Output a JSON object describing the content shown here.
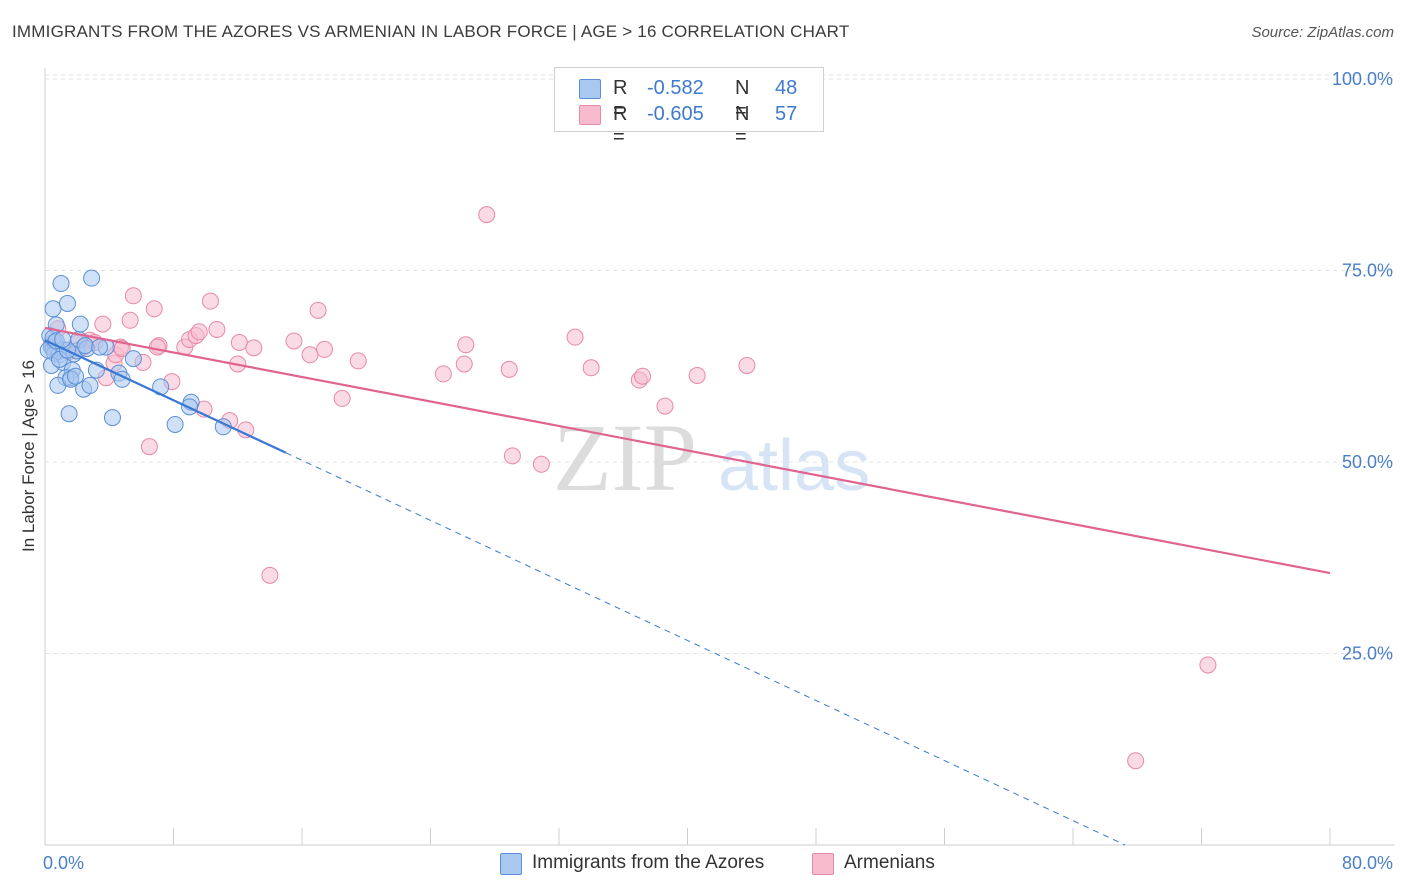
{
  "title": "IMMIGRANTS FROM THE AZORES VS ARMENIAN IN LABOR FORCE | AGE > 16 CORRELATION CHART",
  "source": "Source: ZipAtlas.com",
  "legend": {
    "rows": [
      {
        "r_label": "R =",
        "r_value": "-0.582",
        "n_label": "N =",
        "n_value": "48"
      },
      {
        "r_label": "R =",
        "r_value": "-0.605",
        "n_label": "N =",
        "n_value": "57"
      }
    ]
  },
  "bottom_legend": {
    "series1": "Immigrants from the Azores",
    "series2": "Armenians"
  },
  "colors": {
    "blue_fill": "#a9c8f0",
    "blue_stroke": "#5b8fd6",
    "blue_line": "#3a78d2",
    "pink_fill": "#f6bccd",
    "pink_stroke": "#e889a8",
    "pink_line": "#e0648f",
    "tick_text": "#4a7fc8"
  },
  "chart_data": {
    "type": "scatter",
    "title": "IMMIGRANTS FROM THE AZORES VS ARMENIAN IN LABOR FORCE | AGE > 16 CORRELATION CHART",
    "xlabel": "",
    "ylabel": "In Labor Force | Age > 16",
    "xlim": [
      0,
      80
    ],
    "ylim": [
      0,
      105
    ],
    "x_tick_labels": [
      "0.0%",
      "80.0%"
    ],
    "y_ticks": [
      25,
      50,
      75,
      100
    ],
    "y_tick_labels": [
      "25.0%",
      "50.0%",
      "75.0%",
      "100.0%"
    ],
    "grid": true,
    "watermark": {
      "part1": "ZIP",
      "part2": "atlas"
    },
    "series": [
      {
        "name": "Immigrants from the Azores",
        "color": "blue",
        "points": [
          [
            0.3,
            66.5
          ],
          [
            0.4,
            65.0
          ],
          [
            0.5,
            64.8
          ],
          [
            0.6,
            65.6
          ],
          [
            0.7,
            67.9
          ],
          [
            0.5,
            70.0
          ],
          [
            0.8,
            64.5
          ],
          [
            0.9,
            64.0
          ],
          [
            1.0,
            73.3
          ],
          [
            1.1,
            63.0
          ],
          [
            1.2,
            64.6
          ],
          [
            1.4,
            70.7
          ],
          [
            1.5,
            56.3
          ],
          [
            1.6,
            61.0
          ],
          [
            1.7,
            62.0
          ],
          [
            1.8,
            64.1
          ],
          [
            2.0,
            64.5
          ],
          [
            2.1,
            66.0
          ],
          [
            2.2,
            68.0
          ],
          [
            2.4,
            59.5
          ],
          [
            2.6,
            64.8
          ],
          [
            2.8,
            60.0
          ],
          [
            2.9,
            74.0
          ],
          [
            3.2,
            62.0
          ],
          [
            3.8,
            65.0
          ],
          [
            4.2,
            55.8
          ],
          [
            4.6,
            61.6
          ],
          [
            4.8,
            60.8
          ],
          [
            5.5,
            63.5
          ],
          [
            7.2,
            59.8
          ],
          [
            8.1,
            54.9
          ],
          [
            9.1,
            57.8
          ],
          [
            11.1,
            54.6
          ],
          [
            9.0,
            57.2
          ],
          [
            1.3,
            61.0
          ],
          [
            0.8,
            60.0
          ],
          [
            1.6,
            60.8
          ],
          [
            0.6,
            64.2
          ],
          [
            1.9,
            61.2
          ],
          [
            0.4,
            62.6
          ],
          [
            0.2,
            64.6
          ],
          [
            0.5,
            66.2
          ],
          [
            0.9,
            63.4
          ],
          [
            2.5,
            65.2
          ],
          [
            1.4,
            64.6
          ],
          [
            0.7,
            65.8
          ],
          [
            1.1,
            66.0
          ],
          [
            3.4,
            65.0
          ]
        ],
        "trend_solid": {
          "x": [
            0,
            15
          ],
          "y": [
            65.9,
            51.2
          ]
        },
        "trend_dashed": {
          "x": [
            15,
            80
          ],
          "y": [
            51.2,
            -12.5
          ]
        }
      },
      {
        "name": "Armenians",
        "color": "pink",
        "points": [
          [
            0.4,
            65.5
          ],
          [
            0.8,
            67.4
          ],
          [
            1.0,
            64.7
          ],
          [
            1.5,
            64.4
          ],
          [
            2.0,
            65.5
          ],
          [
            2.4,
            65.0
          ],
          [
            2.8,
            65.9
          ],
          [
            3.1,
            65.6
          ],
          [
            3.6,
            68.0
          ],
          [
            3.8,
            61.0
          ],
          [
            4.3,
            62.9
          ],
          [
            4.4,
            64.0
          ],
          [
            4.7,
            65.0
          ],
          [
            5.3,
            68.5
          ],
          [
            5.5,
            71.7
          ],
          [
            6.1,
            63.0
          ],
          [
            6.5,
            52.0
          ],
          [
            6.8,
            70.0
          ],
          [
            7.1,
            65.2
          ],
          [
            7.9,
            60.5
          ],
          [
            8.7,
            65.0
          ],
          [
            9.0,
            66.0
          ],
          [
            9.4,
            66.5
          ],
          [
            9.6,
            67.0
          ],
          [
            9.9,
            56.9
          ],
          [
            10.3,
            71.0
          ],
          [
            10.7,
            67.3
          ],
          [
            11.5,
            55.4
          ],
          [
            12.0,
            62.8
          ],
          [
            12.5,
            54.2
          ],
          [
            12.1,
            65.6
          ],
          [
            13.0,
            64.9
          ],
          [
            14.0,
            35.2
          ],
          [
            15.5,
            65.8
          ],
          [
            16.5,
            64.0
          ],
          [
            17.0,
            69.8
          ],
          [
            17.4,
            64.7
          ],
          [
            18.5,
            58.3
          ],
          [
            19.5,
            63.2
          ],
          [
            24.8,
            61.5
          ],
          [
            26.2,
            65.3
          ],
          [
            26.1,
            62.8
          ],
          [
            27.5,
            82.3
          ],
          [
            28.9,
            62.1
          ],
          [
            29.1,
            50.8
          ],
          [
            30.9,
            49.7
          ],
          [
            33.0,
            66.3
          ],
          [
            34.0,
            62.3
          ],
          [
            37.0,
            60.7
          ],
          [
            37.2,
            61.2
          ],
          [
            38.6,
            57.3
          ],
          [
            40.6,
            61.3
          ],
          [
            43.7,
            62.6
          ],
          [
            67.9,
            11.0
          ],
          [
            72.4,
            23.5
          ],
          [
            7.0,
            65.0
          ],
          [
            4.8,
            64.8
          ]
        ],
        "trend_solid": {
          "x": [
            0,
            80
          ],
          "y": [
            67.5,
            35.5
          ]
        }
      }
    ]
  }
}
